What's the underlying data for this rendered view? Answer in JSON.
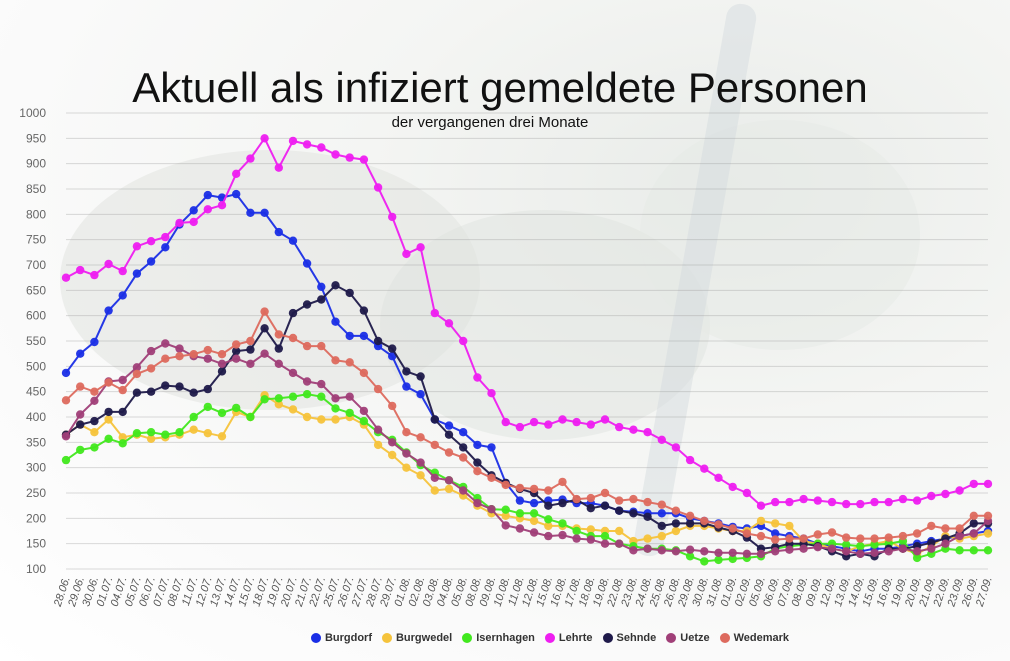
{
  "chart_data": {
    "type": "line",
    "title": "Aktuell als infiziert gemeldete Personen",
    "subtitle": "der vergangenen drei Monate",
    "ylim": [
      100,
      1000
    ],
    "yticks": [
      100,
      150,
      200,
      250,
      300,
      350,
      400,
      450,
      500,
      550,
      600,
      650,
      700,
      750,
      800,
      850,
      900,
      950,
      1000
    ],
    "grid": true,
    "legend_position": "bottom-center",
    "x": [
      "28.06.",
      "29.06.",
      "30.06.",
      "01.07.",
      "04.07.",
      "05.07.",
      "06.07.",
      "07.07.",
      "08.07.",
      "11.07.",
      "12.07.",
      "13.07.",
      "14.07.",
      "15.07.",
      "18.07.",
      "19.07.",
      "20.07.",
      "21.07.",
      "22.07.",
      "25.07.",
      "26.07.",
      "27.07.",
      "28.07.",
      "29.07.",
      "01.08.",
      "02.08.",
      "03.08.",
      "04.08.",
      "05.08.",
      "08.08.",
      "09.08.",
      "10.08.",
      "11.08.",
      "12.08.",
      "15.08.",
      "16.08.",
      "17.08.",
      "18.08.",
      "19.08.",
      "22.08.",
      "23.08.",
      "24.08.",
      "25.08.",
      "26.08.",
      "29.08.",
      "30.08.",
      "31.08.",
      "01.09.",
      "02.09.",
      "05.09.",
      "06.09.",
      "07.09.",
      "08.09.",
      "09.09.",
      "12.09.",
      "13.09.",
      "14.09.",
      "15.09.",
      "16.09.",
      "19.09.",
      "20.09.",
      "21.09.",
      "22.09.",
      "23.09.",
      "26.09.",
      "27.09."
    ],
    "series": [
      {
        "name": "Burgdorf",
        "color": "#1a2ee6",
        "values": [
          487,
          525,
          548,
          610,
          640,
          683,
          707,
          735,
          780,
          808,
          838,
          833,
          840,
          803,
          803,
          765,
          748,
          703,
          657,
          588,
          560,
          560,
          540,
          520,
          460,
          445,
          395,
          383,
          370,
          345,
          340,
          270,
          235,
          230,
          235,
          237,
          230,
          230,
          225,
          215,
          213,
          210,
          210,
          210,
          200,
          195,
          190,
          183,
          180,
          185,
          170,
          165,
          160,
          150,
          145,
          140,
          135,
          140,
          140,
          145,
          150,
          155,
          160,
          165,
          170,
          175
        ]
      },
      {
        "name": "Burgwedel",
        "color": "#f5c33b",
        "values": [
          365,
          385,
          370,
          395,
          360,
          365,
          357,
          360,
          365,
          375,
          368,
          362,
          410,
          400,
          443,
          425,
          415,
          400,
          395,
          395,
          400,
          385,
          345,
          325,
          300,
          285,
          255,
          258,
          245,
          225,
          210,
          205,
          200,
          195,
          185,
          185,
          180,
          178,
          175,
          175,
          155,
          160,
          165,
          175,
          185,
          185,
          180,
          175,
          175,
          195,
          190,
          185,
          155,
          150,
          140,
          135,
          145,
          150,
          155,
          140,
          130,
          145,
          165,
          160,
          165,
          170
        ]
      },
      {
        "name": "Isernhagen",
        "color": "#41e81e",
        "values": [
          315,
          335,
          340,
          357,
          348,
          368,
          370,
          365,
          370,
          400,
          420,
          408,
          418,
          400,
          435,
          437,
          440,
          445,
          440,
          417,
          408,
          392,
          370,
          355,
          330,
          305,
          290,
          275,
          262,
          240,
          218,
          217,
          210,
          210,
          198,
          190,
          175,
          165,
          165,
          150,
          145,
          140,
          140,
          137,
          125,
          115,
          118,
          120,
          122,
          125,
          140,
          145,
          148,
          150,
          150,
          148,
          145,
          148,
          150,
          155,
          122,
          130,
          140,
          137,
          137,
          137
        ]
      },
      {
        "name": "Lehrte",
        "color": "#ee1ef0",
        "values": [
          675,
          690,
          680,
          702,
          688,
          737,
          747,
          755,
          783,
          785,
          810,
          818,
          880,
          910,
          950,
          892,
          945,
          938,
          932,
          918,
          912,
          908,
          853,
          795,
          722,
          735,
          605,
          585,
          550,
          478,
          447,
          390,
          380,
          390,
          385,
          395,
          390,
          385,
          395,
          380,
          375,
          370,
          355,
          340,
          315,
          298,
          280,
          262,
          250,
          225,
          232,
          232,
          238,
          235,
          232,
          228,
          228,
          232,
          232,
          238,
          235,
          244,
          248,
          255,
          268,
          268
        ]
      },
      {
        "name": "Sehnde",
        "color": "#1f1a4a",
        "values": [
          365,
          385,
          392,
          410,
          410,
          448,
          450,
          462,
          460,
          448,
          455,
          490,
          530,
          533,
          575,
          535,
          605,
          622,
          632,
          660,
          645,
          610,
          550,
          535,
          490,
          480,
          395,
          365,
          340,
          310,
          285,
          270,
          258,
          250,
          225,
          230,
          237,
          220,
          225,
          215,
          210,
          203,
          185,
          190,
          190,
          190,
          182,
          175,
          162,
          140,
          143,
          150,
          150,
          145,
          135,
          125,
          130,
          125,
          140,
          140,
          145,
          152,
          160,
          170,
          190,
          190
        ]
      },
      {
        "name": "Uetze",
        "color": "#a03f78",
        "values": [
          362,
          405,
          432,
          470,
          473,
          498,
          530,
          545,
          535,
          520,
          515,
          505,
          515,
          505,
          525,
          505,
          487,
          470,
          465,
          437,
          440,
          412,
          375,
          350,
          328,
          310,
          280,
          275,
          255,
          230,
          218,
          186,
          180,
          172,
          165,
          167,
          160,
          158,
          150,
          150,
          137,
          140,
          137,
          135,
          138,
          135,
          132,
          132,
          130,
          130,
          135,
          138,
          140,
          143,
          140,
          135,
          130,
          132,
          135,
          140,
          135,
          140,
          150,
          165,
          170,
          195
        ]
      },
      {
        "name": "Wedemark",
        "color": "#dd6a5e",
        "values": [
          433,
          460,
          450,
          468,
          453,
          485,
          496,
          515,
          520,
          524,
          532,
          524,
          543,
          550,
          608,
          563,
          556,
          540,
          540,
          512,
          508,
          487,
          455,
          422,
          370,
          360,
          345,
          330,
          320,
          293,
          280,
          266,
          260,
          258,
          255,
          272,
          238,
          240,
          250,
          235,
          238,
          232,
          227,
          215,
          205,
          195,
          188,
          180,
          170,
          165,
          158,
          160,
          160,
          168,
          172,
          162,
          160,
          160,
          162,
          165,
          170,
          185,
          180,
          180,
          205,
          205
        ]
      }
    ]
  }
}
